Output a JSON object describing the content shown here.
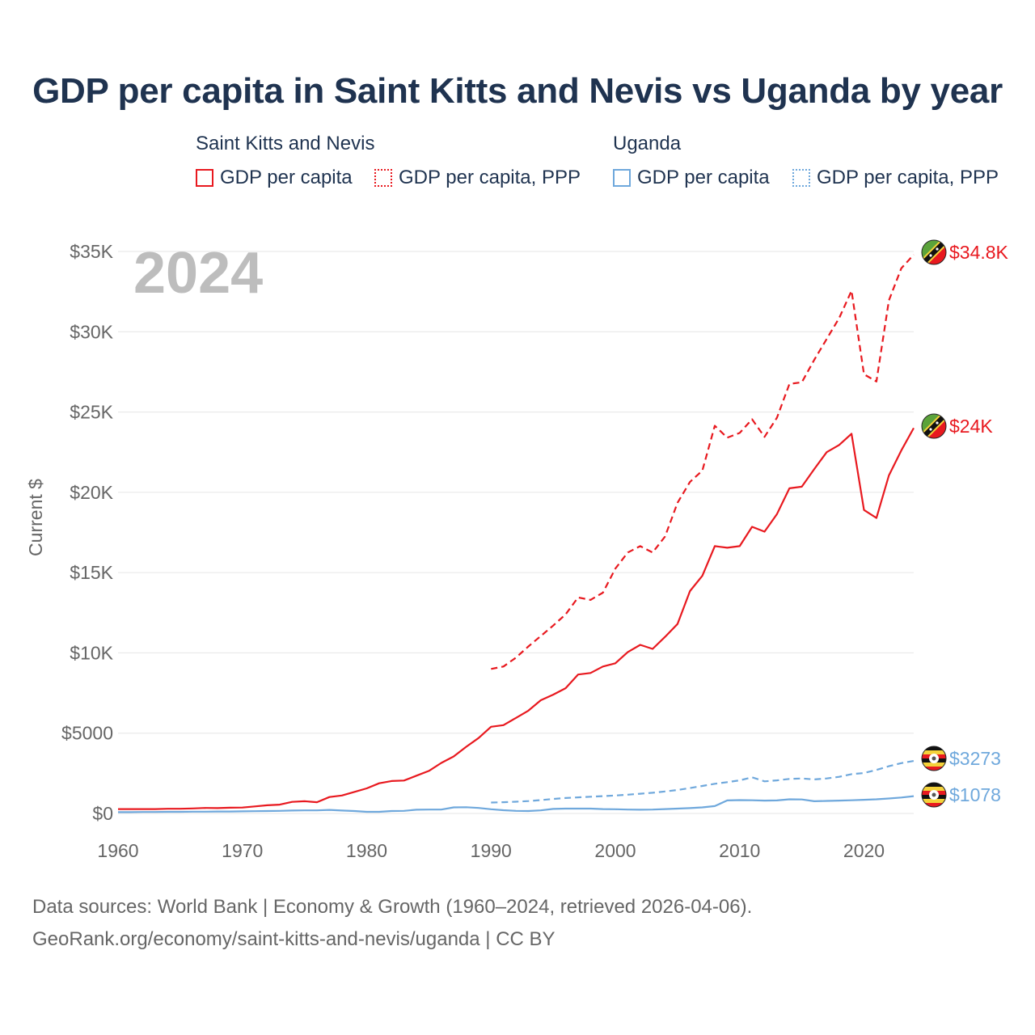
{
  "title": "GDP per capita in Saint Kitts and Nevis vs Uganda by year",
  "legend": {
    "groups": [
      {
        "name": "Saint Kitts and Nevis",
        "items": [
          "GDP per capita",
          "GDP per capita, PPP"
        ]
      },
      {
        "name": "Uganda",
        "items": [
          "GDP per capita",
          "GDP per capita, PPP"
        ]
      }
    ]
  },
  "footer": {
    "line1": "Data sources: World Bank | Economy & Growth (1960–2024, retrieved 2026-04-06).",
    "line2": "GeoRank.org/economy/saint-kitts-and-nevis/uganda | CC BY"
  },
  "colors": {
    "kn": "#e8191f",
    "ug": "#6fa8dc",
    "grid": "#e6e6e6",
    "axis": "#666666",
    "year": "#bdbdbd"
  },
  "chart_data": {
    "type": "line",
    "title": "GDP per capita in Saint Kitts and Nevis vs Uganda by year",
    "year_label": "2024",
    "xlabel": "",
    "ylabel": "Current $",
    "xlim": [
      1960,
      2024
    ],
    "ylim": [
      0,
      35000
    ],
    "x_ticks": [
      1960,
      1970,
      1980,
      1990,
      2000,
      2010,
      2020
    ],
    "x_tick_labels": [
      "1960",
      "1970",
      "1980",
      "1990",
      "2000",
      "2010",
      "2020"
    ],
    "y_ticks": [
      0,
      5000,
      10000,
      15000,
      20000,
      25000,
      30000,
      35000
    ],
    "y_tick_labels": [
      "$0",
      "$5000",
      "$10K",
      "$15K",
      "$20K",
      "$25K",
      "$30K",
      "$35K"
    ],
    "grid": true,
    "series": [
      {
        "name": "Saint Kitts and Nevis GDP per capita",
        "country": "kn",
        "dashed": false,
        "end_label": "$24K",
        "x": [
          1960,
          1961,
          1962,
          1963,
          1964,
          1965,
          1966,
          1967,
          1968,
          1969,
          1970,
          1971,
          1972,
          1973,
          1974,
          1975,
          1976,
          1977,
          1978,
          1979,
          1980,
          1981,
          1982,
          1983,
          1984,
          1985,
          1986,
          1987,
          1988,
          1989,
          1990,
          1991,
          1992,
          1993,
          1994,
          1995,
          1996,
          1997,
          1998,
          1999,
          2000,
          2001,
          2002,
          2003,
          2004,
          2005,
          2006,
          2007,
          2008,
          2009,
          2010,
          2011,
          2012,
          2013,
          2014,
          2015,
          2016,
          2017,
          2018,
          2019,
          2020,
          2021,
          2022,
          2023,
          2024
        ],
        "values": [
          270,
          270,
          270,
          270,
          290,
          290,
          310,
          340,
          330,
          360,
          370,
          440,
          510,
          550,
          720,
          760,
          700,
          1020,
          1120,
          1340,
          1560,
          1880,
          2020,
          2050,
          2350,
          2650,
          3150,
          3550,
          4150,
          4700,
          5400,
          5500,
          5950,
          6400,
          7050,
          7400,
          7800,
          8650,
          8750,
          9150,
          9350,
          10050,
          10500,
          10250,
          11000,
          11800,
          13850,
          14800,
          16650,
          16550,
          16650,
          17850,
          17550,
          18650,
          20250,
          20350,
          21450,
          22500,
          22950,
          23650,
          18900,
          18400,
          21050,
          22600,
          24000
        ]
      },
      {
        "name": "Saint Kitts and Nevis GDP per capita, PPP",
        "country": "kn",
        "dashed": true,
        "end_label": "$34.8K",
        "x": [
          1990,
          1991,
          1992,
          1993,
          1994,
          1995,
          1996,
          1997,
          1998,
          1999,
          2000,
          2001,
          2002,
          2003,
          2004,
          2005,
          2006,
          2007,
          2008,
          2009,
          2010,
          2011,
          2012,
          2013,
          2014,
          2015,
          2016,
          2017,
          2018,
          2019,
          2020,
          2021,
          2022,
          2023,
          2024
        ],
        "values": [
          9000,
          9150,
          9700,
          10400,
          11050,
          11700,
          12400,
          13450,
          13300,
          13750,
          15250,
          16250,
          16650,
          16250,
          17250,
          19350,
          20650,
          21350,
          24150,
          23400,
          23700,
          24550,
          23450,
          24650,
          26750,
          26850,
          28250,
          29550,
          30850,
          32550,
          27350,
          26900,
          31950,
          33950,
          34800
        ]
      },
      {
        "name": "Uganda GDP per capita",
        "country": "ug",
        "dashed": false,
        "end_label": "$1078",
        "x": [
          1960,
          1961,
          1962,
          1963,
          1964,
          1965,
          1966,
          1967,
          1968,
          1969,
          1970,
          1971,
          1972,
          1973,
          1974,
          1975,
          1976,
          1977,
          1978,
          1979,
          1980,
          1981,
          1982,
          1983,
          1984,
          1985,
          1986,
          1987,
          1988,
          1989,
          1990,
          1991,
          1992,
          1993,
          1994,
          1995,
          1996,
          1997,
          1998,
          1999,
          2000,
          2001,
          2002,
          2003,
          2004,
          2005,
          2006,
          2007,
          2008,
          2009,
          2010,
          2011,
          2012,
          2013,
          2014,
          2015,
          2016,
          2017,
          2018,
          2019,
          2020,
          2021,
          2022,
          2023,
          2024
        ],
        "values": [
          80,
          80,
          90,
          90,
          100,
          100,
          110,
          110,
          120,
          120,
          130,
          140,
          150,
          160,
          180,
          190,
          190,
          220,
          180,
          150,
          100,
          100,
          150,
          160,
          230,
          240,
          240,
          380,
          390,
          340,
          260,
          200,
          160,
          150,
          190,
          280,
          300,
          300,
          300,
          270,
          260,
          240,
          230,
          240,
          270,
          300,
          330,
          380,
          460,
          810,
          830,
          820,
          800,
          810,
          880,
          870,
          760,
          780,
          800,
          820,
          850,
          880,
          930,
          990,
          1078
        ]
      },
      {
        "name": "Uganda GDP per capita, PPP",
        "country": "ug",
        "dashed": true,
        "end_label": "$3273",
        "x": [
          1990,
          1991,
          1992,
          1993,
          1994,
          1995,
          1996,
          1997,
          1998,
          1999,
          2000,
          2001,
          2002,
          2003,
          2004,
          2005,
          2006,
          2007,
          2008,
          2009,
          2010,
          2011,
          2012,
          2013,
          2014,
          2015,
          2016,
          2017,
          2018,
          2019,
          2020,
          2021,
          2022,
          2023,
          2024
        ],
        "values": [
          680,
          700,
          730,
          770,
          830,
          900,
          960,
          1000,
          1040,
          1080,
          1120,
          1170,
          1230,
          1290,
          1370,
          1460,
          1580,
          1710,
          1850,
          1950,
          2060,
          2250,
          2000,
          2060,
          2150,
          2180,
          2120,
          2180,
          2280,
          2450,
          2520,
          2710,
          2940,
          3130,
          3273
        ]
      }
    ]
  }
}
